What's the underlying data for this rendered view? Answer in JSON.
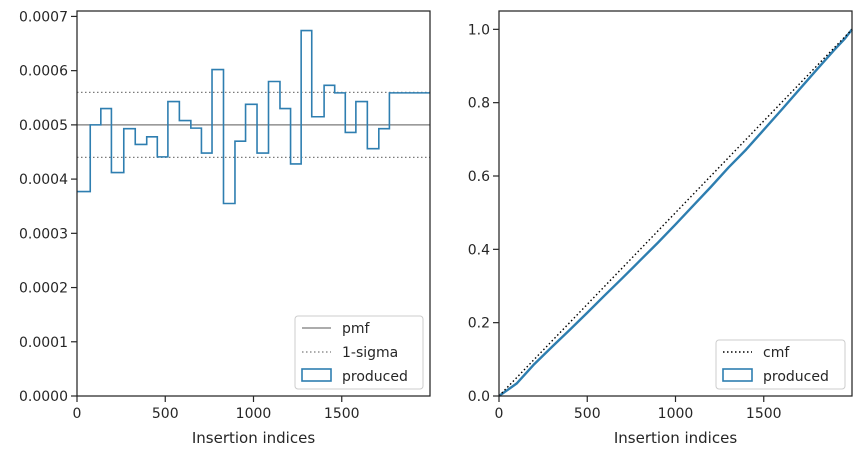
{
  "colors": {
    "produced": "#2e7eb0",
    "pmf": "#7a7a7a",
    "sigma": "#7a7a7a",
    "cmf": "#000000",
    "axes": "#262626"
  },
  "chart_data": [
    {
      "type": "step",
      "xlabel": "Insertion indices",
      "ylabel": "",
      "xlim": [
        0,
        2000
      ],
      "ylim": [
        0,
        0.00071
      ],
      "x_ticks": [
        0,
        500,
        1000,
        1500
      ],
      "x_tick_labels": [
        "0",
        "500",
        "1000",
        "1500"
      ],
      "y_ticks": [
        0,
        0.0001,
        0.0002,
        0.0003,
        0.0004,
        0.0005,
        0.0006,
        0.0007
      ],
      "y_tick_labels": [
        "0.0000",
        "0.0001",
        "0.0002",
        "0.0003",
        "0.0004",
        "0.0005",
        "0.0006",
        "0.0007"
      ],
      "pmf": 0.0005,
      "sigma_lower": 0.00044,
      "sigma_upper": 0.00056,
      "bin_edges": [
        0,
        75,
        135,
        195,
        265,
        330,
        395,
        455,
        515,
        580,
        645,
        705,
        765,
        830,
        895,
        955,
        1020,
        1085,
        1150,
        1210,
        1270,
        1330,
        1400,
        1460,
        1520,
        1580,
        1645,
        1710,
        1770,
        1830,
        1880,
        1940,
        2000
      ],
      "produced": [
        0.000377,
        0.0005,
        0.00053,
        0.000412,
        0.000493,
        0.000464,
        0.000478,
        0.000441,
        0.000543,
        0.000508,
        0.000494,
        0.000448,
        0.000602,
        0.000355,
        0.00047,
        0.000538,
        0.000448,
        0.00058,
        0.00053,
        0.000428,
        0.000674,
        0.000515,
        0.000573,
        0.000559,
        0.000486,
        0.000543,
        0.000456,
        0.000493,
        0.000559,
        0.000559,
        0.000559,
        0.000559
      ],
      "legend": {
        "placement": "lower right",
        "entries": [
          "pmf",
          "1-sigma",
          "produced"
        ]
      }
    },
    {
      "type": "line",
      "xlabel": "Insertion indices",
      "ylabel": "",
      "xlim": [
        0,
        2000
      ],
      "ylim": [
        0,
        1.05
      ],
      "x_ticks": [
        0,
        500,
        1000,
        1500
      ],
      "x_tick_labels": [
        "0",
        "500",
        "1000",
        "1500"
      ],
      "y_ticks": [
        0,
        0.2,
        0.4,
        0.6,
        0.8,
        1.0
      ],
      "y_tick_labels": [
        "0.0",
        "0.2",
        "0.4",
        "0.6",
        "0.8",
        "1.0"
      ],
      "cmf": {
        "x": [
          0,
          2000
        ],
        "y": [
          0,
          1.0
        ]
      },
      "produced": {
        "x": [
          0,
          100,
          200,
          300,
          400,
          500,
          600,
          700,
          800,
          900,
          1000,
          1100,
          1200,
          1300,
          1400,
          1500,
          1600,
          1700,
          1800,
          1900,
          1960,
          2000
        ],
        "y": [
          0,
          0.034,
          0.087,
          0.134,
          0.18,
          0.227,
          0.275,
          0.322,
          0.37,
          0.418,
          0.468,
          0.519,
          0.57,
          0.623,
          0.672,
          0.726,
          0.78,
          0.835,
          0.89,
          0.944,
          0.975,
          1.0
        ]
      },
      "legend": {
        "placement": "lower right",
        "entries": [
          "cmf",
          "produced"
        ]
      }
    }
  ]
}
